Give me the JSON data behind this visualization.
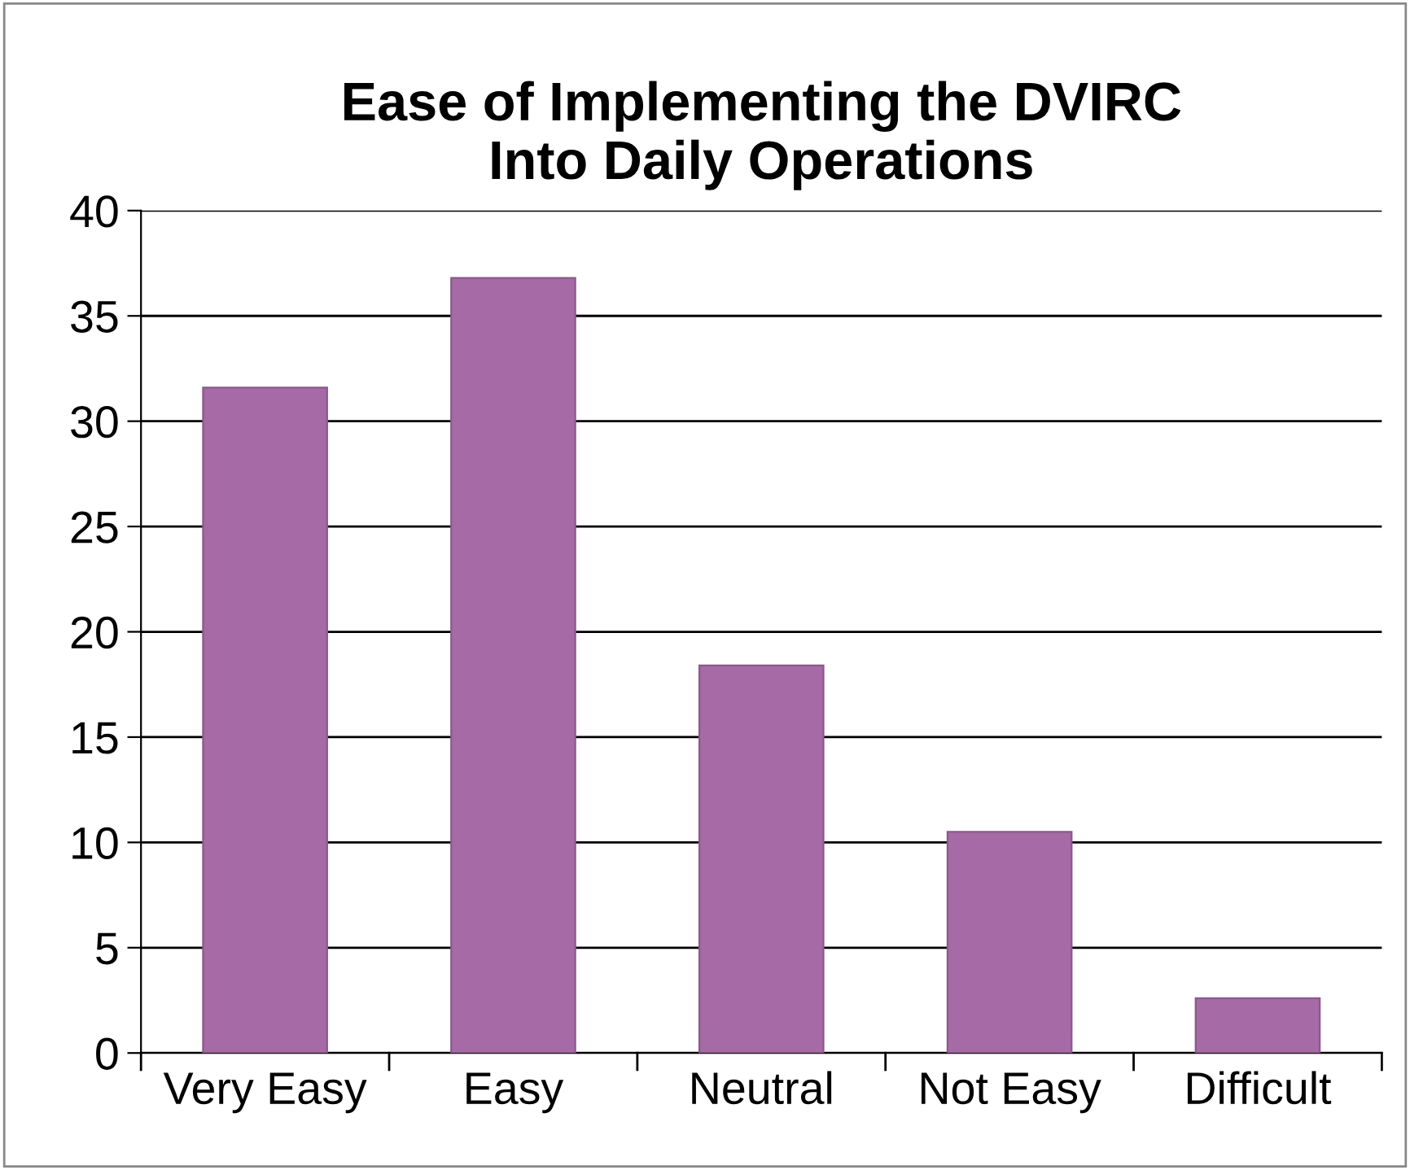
{
  "chart_data": {
    "type": "bar",
    "title": "Ease of Implementing the DVIRC\nInto Daily Operations",
    "categories": [
      "Very Easy",
      "Easy",
      "Neutral",
      "Not Easy",
      "Difficult"
    ],
    "values": [
      31.6,
      36.8,
      18.4,
      10.5,
      2.6
    ],
    "color": "#a66aa6",
    "ylim": [
      0,
      40
    ],
    "yticks": [
      0,
      5,
      10,
      15,
      20,
      25,
      30,
      35,
      40
    ],
    "grid": "y"
  }
}
